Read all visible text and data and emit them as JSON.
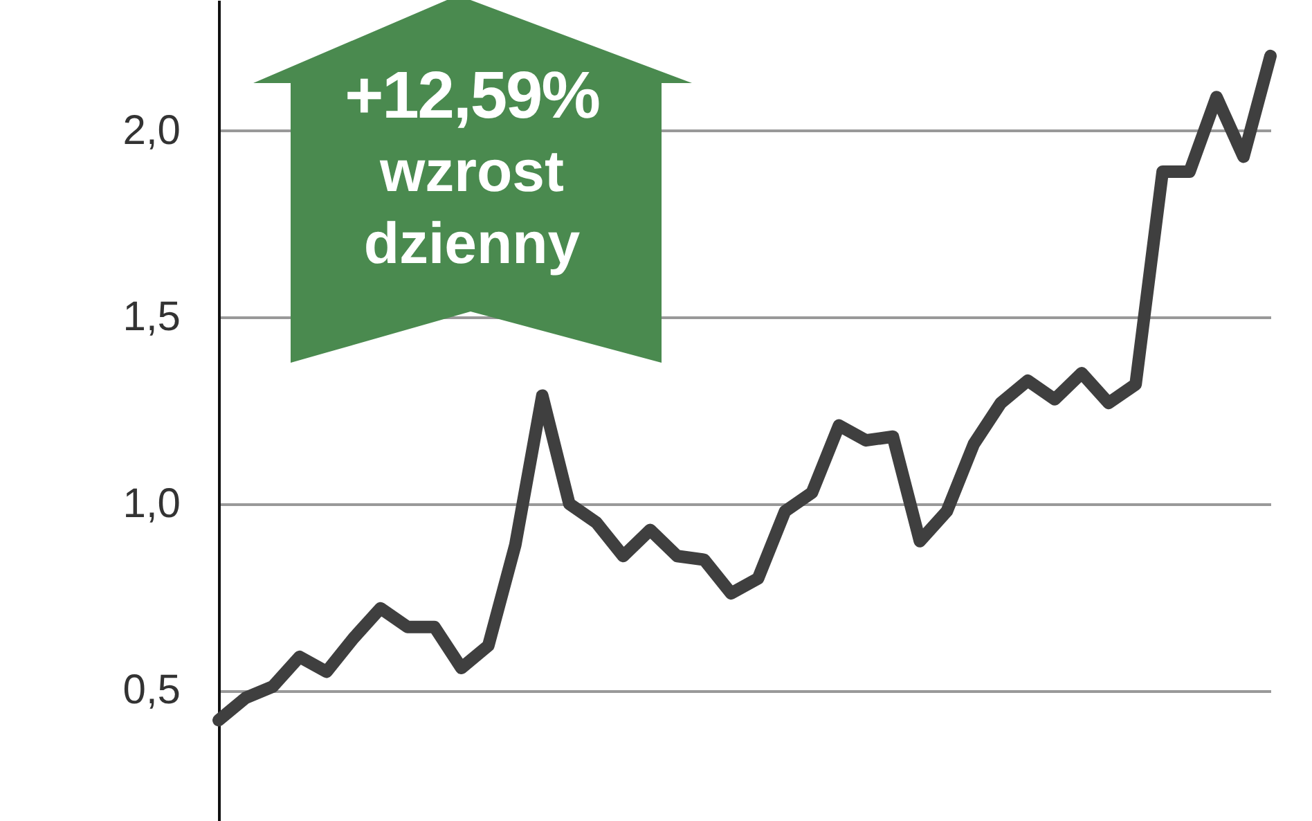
{
  "chart_data": {
    "type": "line",
    "categories": [
      null,
      null,
      null,
      null,
      null,
      null,
      null,
      null,
      null,
      null,
      null,
      null,
      null,
      null,
      null,
      null,
      null,
      null,
      null,
      null,
      null,
      null,
      null,
      null,
      null,
      null,
      null,
      null,
      null,
      null,
      null,
      null,
      null,
      null,
      null,
      null,
      null,
      null,
      null,
      null
    ],
    "series": [
      {
        "color": "#3f3f3f",
        "values": [
          0.42,
          0.48,
          0.51,
          0.59,
          0.55,
          0.64,
          0.72,
          0.67,
          0.67,
          0.56,
          0.62,
          0.89,
          1.29,
          1.0,
          0.95,
          0.86,
          0.93,
          0.86,
          0.85,
          0.76,
          0.8,
          0.98,
          1.03,
          1.21,
          1.17,
          1.18,
          0.9,
          0.98,
          1.16,
          1.27,
          1.33,
          1.28,
          1.35,
          1.27,
          1.32,
          1.89,
          1.89,
          2.09,
          1.93,
          2.2
        ]
      }
    ],
    "ylim": [
      0.15,
      2.35
    ],
    "yticks": [
      {
        "value": 0.5,
        "label": "0,5"
      },
      {
        "value": 1.0,
        "label": "1,0"
      },
      {
        "value": 1.5,
        "label": "1,5"
      },
      {
        "value": 2.0,
        "label": "2,0"
      }
    ],
    "grid": "y",
    "marker": "none",
    "line_style": "solid",
    "tick_labels": "y",
    "annotations": [
      "+12,59%",
      "wzrost dzienny"
    ]
  }
}
